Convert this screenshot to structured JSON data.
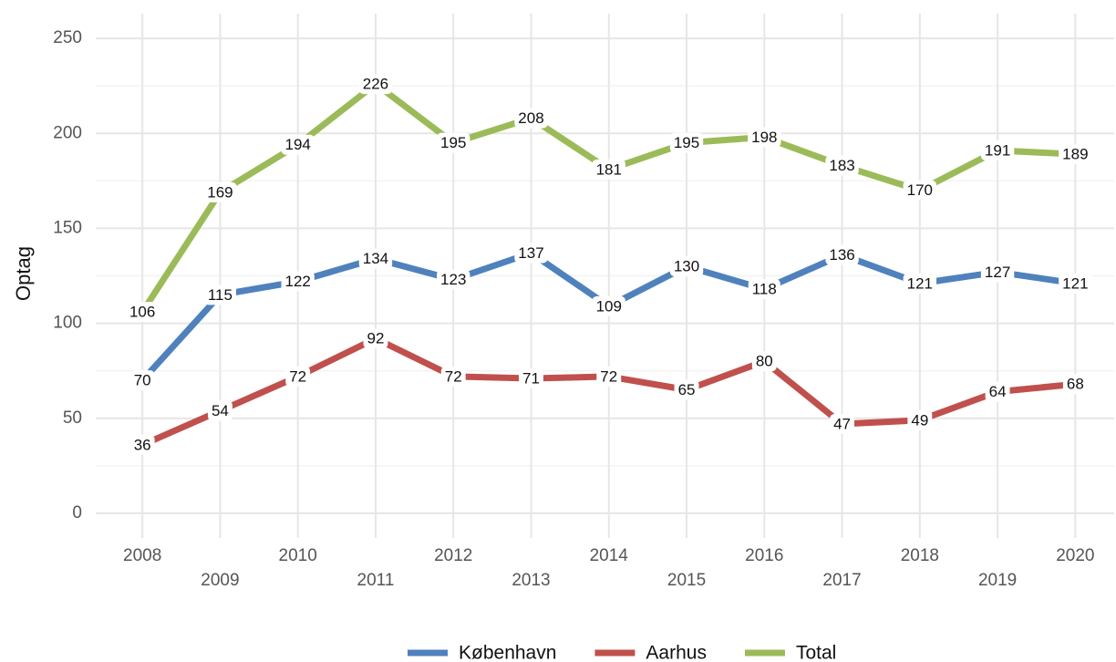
{
  "chart_data": {
    "type": "line",
    "y_label": "Optag",
    "x": [
      2008,
      2009,
      2010,
      2011,
      2012,
      2013,
      2014,
      2015,
      2016,
      2017,
      2018,
      2019,
      2020
    ],
    "series": [
      {
        "name": "København",
        "color": "#4f81bd",
        "values": [
          70,
          115,
          122,
          134,
          123,
          137,
          109,
          130,
          118,
          136,
          121,
          127,
          121
        ]
      },
      {
        "name": "Aarhus",
        "color": "#c0504d",
        "values": [
          36,
          54,
          72,
          92,
          72,
          71,
          72,
          65,
          80,
          47,
          49,
          64,
          68
        ]
      },
      {
        "name": "Total",
        "color": "#9bbb59",
        "values": [
          106,
          169,
          194,
          226,
          195,
          208,
          181,
          195,
          198,
          183,
          170,
          191,
          189
        ]
      }
    ],
    "xlim": [
      2007.4,
      2020.5
    ],
    "xticks": [
      2008,
      2009,
      2010,
      2011,
      2012,
      2013,
      2014,
      2015,
      2016,
      2017,
      2018,
      2019,
      2020
    ],
    "ylim": [
      -13,
      263
    ],
    "yticks": [
      0,
      50,
      100,
      150,
      200,
      250
    ],
    "grid": true,
    "legend": "bottom",
    "data_labels": true
  }
}
